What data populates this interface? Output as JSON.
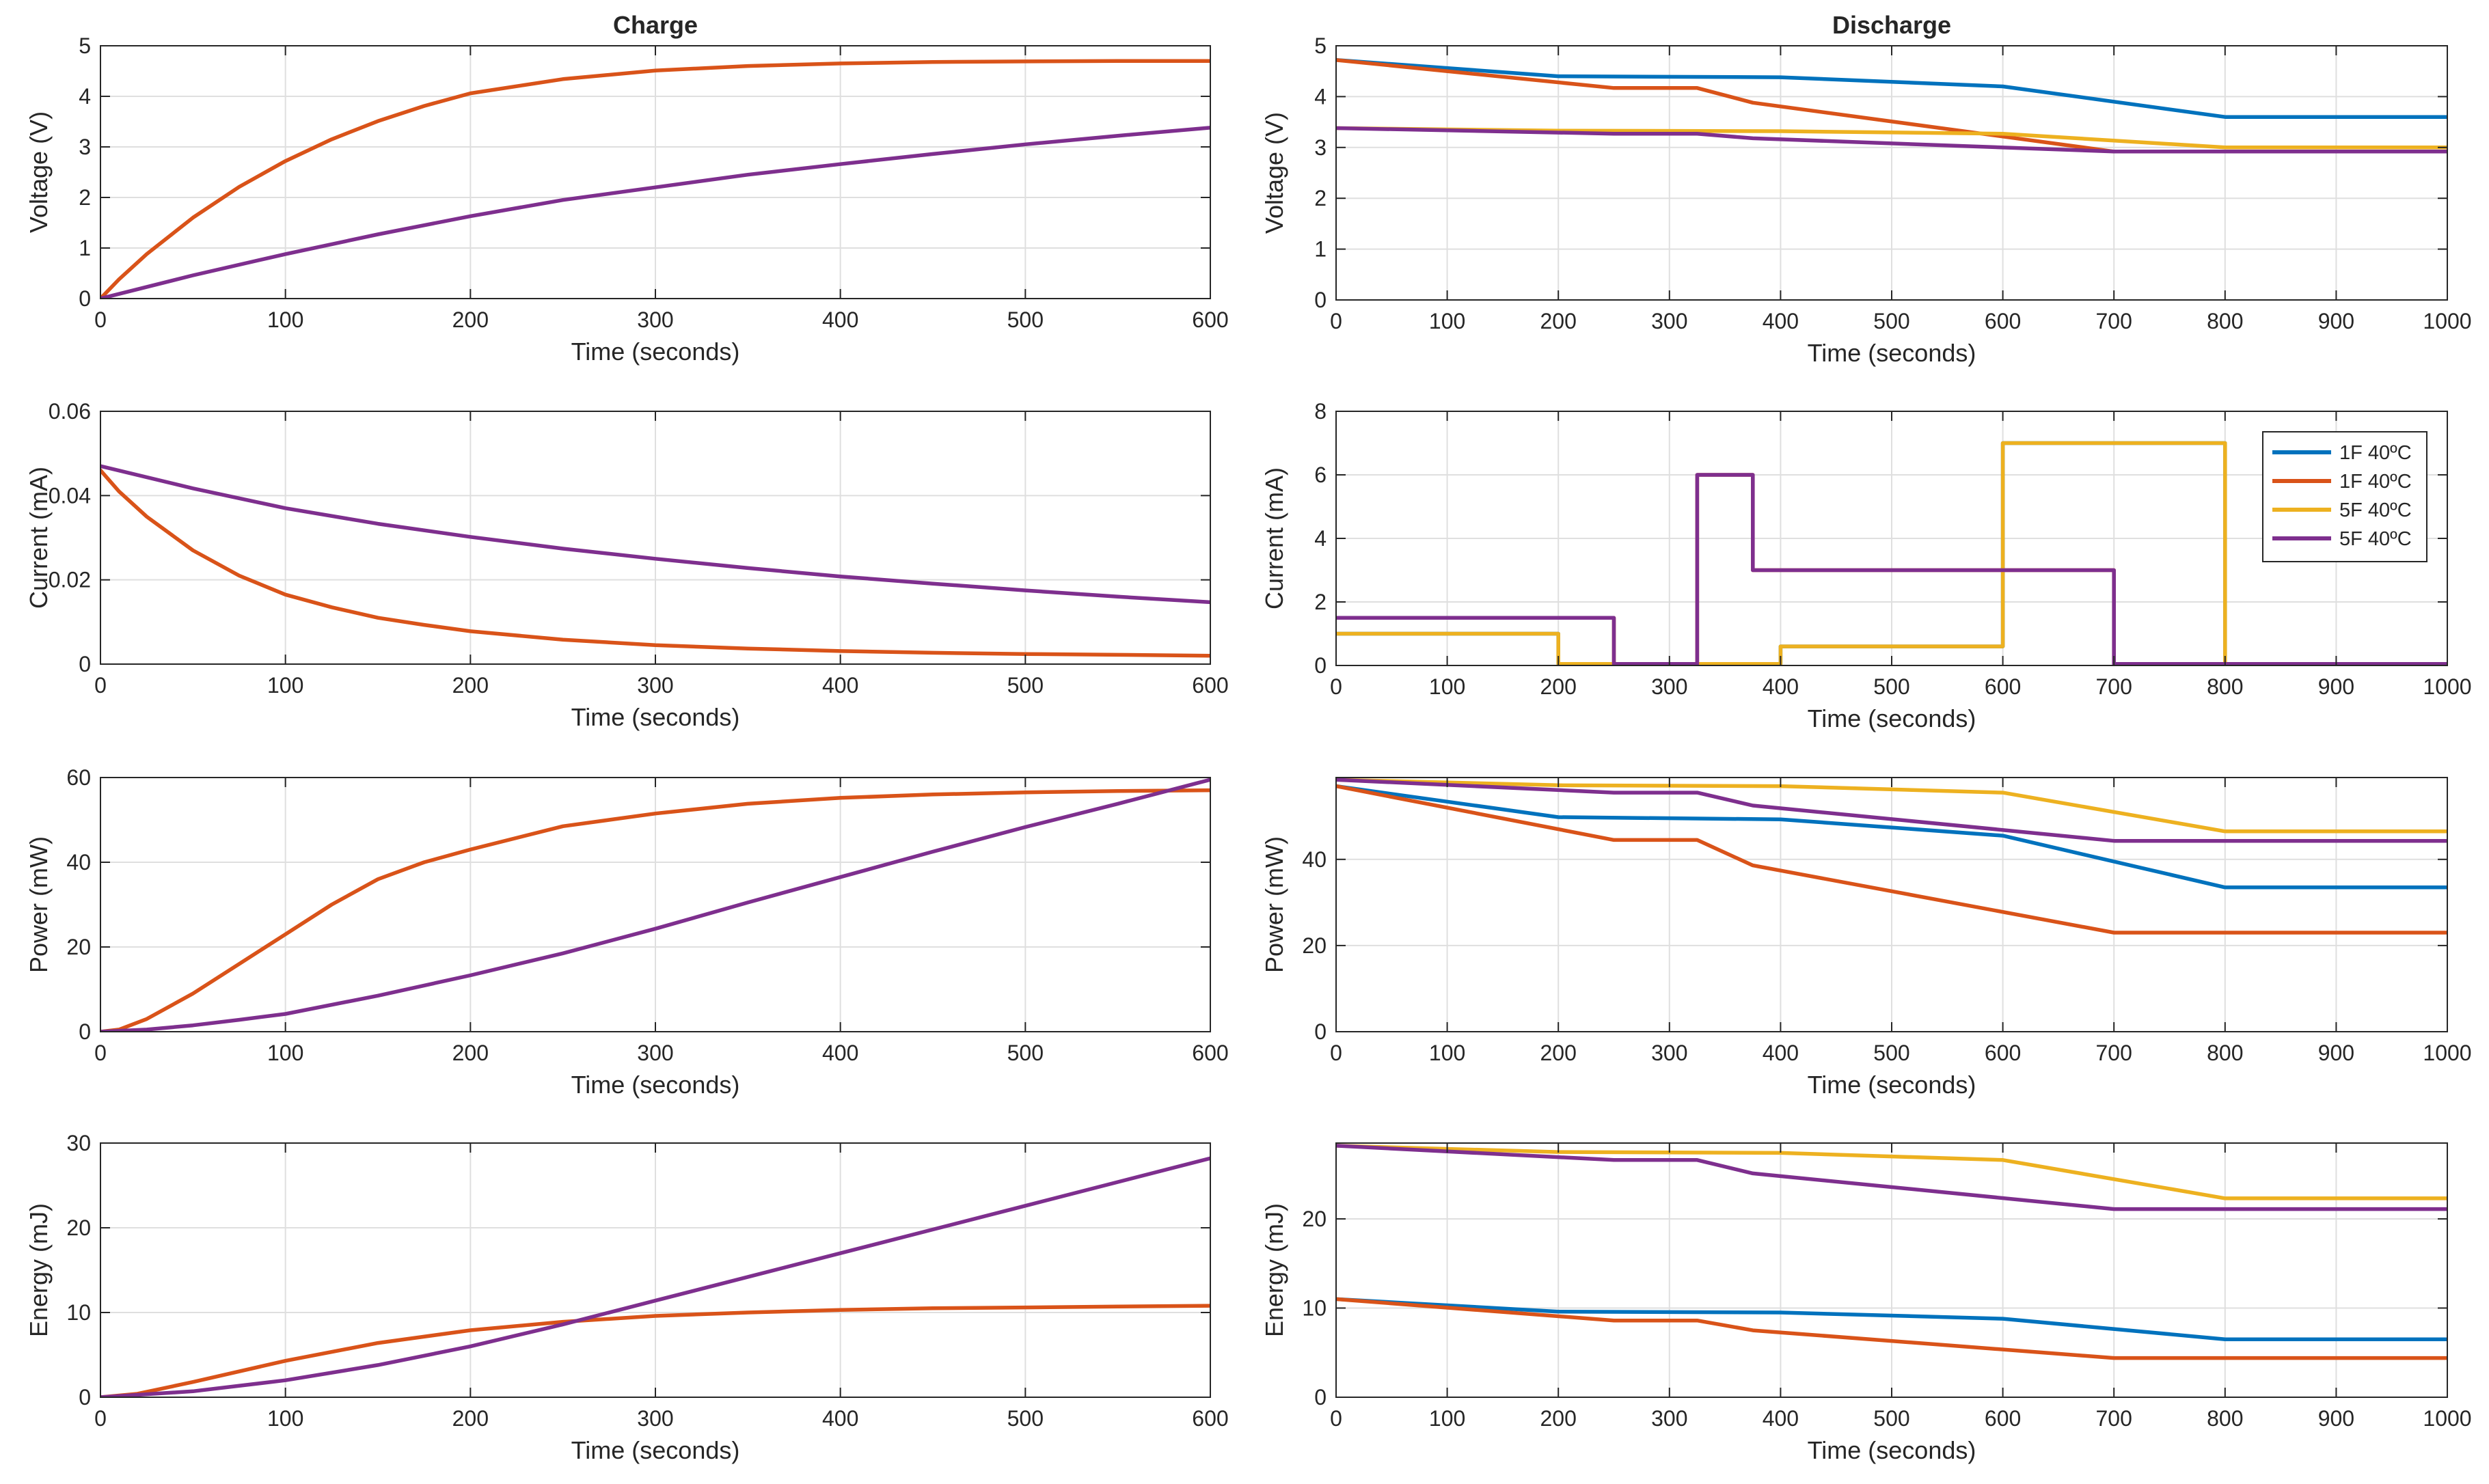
{
  "colors": {
    "blue": "#0072BD",
    "orange": "#D95319",
    "yellow": "#EDB120",
    "purple": "#7E2F8E",
    "grid": "#dfdfdf",
    "axis": "#262626"
  },
  "chart_data": [
    {
      "id": "charge-voltage",
      "type": "line",
      "title": "Charge",
      "xlabel": "Time (seconds)",
      "ylabel": "Voltage (V)",
      "xlim": [
        0,
        600
      ],
      "ylim": [
        0,
        5
      ],
      "xticks": [
        0,
        100,
        200,
        300,
        400,
        500,
        600
      ],
      "yticks": [
        0,
        1,
        2,
        3,
        4,
        5
      ],
      "ytick_labels": [
        "0",
        "1",
        "2",
        "3",
        "4",
        "5"
      ],
      "series": [
        {
          "name": "orange",
          "color": "#D95319",
          "x": [
            0,
            10,
            25,
            50,
            75,
            100,
            125,
            150,
            175,
            200,
            250,
            300,
            350,
            400,
            450,
            500,
            550,
            600
          ],
          "y": [
            0,
            0.38,
            0.88,
            1.6,
            2.21,
            2.72,
            3.15,
            3.51,
            3.81,
            4.06,
            4.34,
            4.51,
            4.6,
            4.65,
            4.68,
            4.69,
            4.7,
            4.7
          ]
        },
        {
          "name": "purple",
          "color": "#7E2F8E",
          "x": [
            0,
            50,
            100,
            150,
            200,
            250,
            300,
            350,
            400,
            450,
            500,
            550,
            600
          ],
          "y": [
            0,
            0.46,
            0.88,
            1.27,
            1.63,
            1.95,
            2.2,
            2.45,
            2.66,
            2.86,
            3.05,
            3.22,
            3.38
          ]
        }
      ]
    },
    {
      "id": "charge-current",
      "type": "line",
      "title": "",
      "xlabel": "Time (seconds)",
      "ylabel": "Current (mA)",
      "xlim": [
        0,
        600
      ],
      "ylim": [
        0,
        0.06
      ],
      "xticks": [
        0,
        100,
        200,
        300,
        400,
        500,
        600
      ],
      "yticks": [
        0,
        0.02,
        0.04,
        0.06
      ],
      "ytick_labels": [
        "0",
        "0.02",
        "0.04",
        "0.06"
      ],
      "series": [
        {
          "name": "orange",
          "color": "#D95319",
          "x": [
            0,
            10,
            25,
            50,
            75,
            100,
            125,
            150,
            175,
            200,
            250,
            300,
            350,
            400,
            450,
            500,
            550,
            600
          ],
          "y": [
            0.046,
            0.041,
            0.035,
            0.027,
            0.021,
            0.0165,
            0.0135,
            0.011,
            0.0093,
            0.0078,
            0.0058,
            0.0045,
            0.0037,
            0.0031,
            0.0027,
            0.0024,
            0.0022,
            0.002
          ]
        },
        {
          "name": "purple",
          "color": "#7E2F8E",
          "x": [
            0,
            50,
            100,
            150,
            200,
            250,
            300,
            350,
            400,
            450,
            500,
            550,
            600
          ],
          "y": [
            0.047,
            0.0417,
            0.037,
            0.0333,
            0.0302,
            0.0274,
            0.025,
            0.0228,
            0.0208,
            0.0191,
            0.0175,
            0.016,
            0.0147
          ]
        }
      ]
    },
    {
      "id": "charge-power",
      "type": "line",
      "title": "",
      "xlabel": "Time (seconds)",
      "ylabel": "Power (mW)",
      "xlim": [
        0,
        600
      ],
      "ylim": [
        0,
        60
      ],
      "xticks": [
        0,
        100,
        200,
        300,
        400,
        500,
        600
      ],
      "yticks": [
        0,
        20,
        40,
        60
      ],
      "ytick_labels": [
        "0",
        "20",
        "40",
        "60"
      ],
      "series": [
        {
          "name": "orange",
          "color": "#D95319",
          "x": [
            0,
            10,
            25,
            50,
            75,
            100,
            125,
            150,
            175,
            200,
            250,
            300,
            350,
            400,
            450,
            500,
            550,
            600
          ],
          "y": [
            0,
            0.5,
            3,
            9,
            16,
            23,
            30,
            36,
            40,
            43,
            48.5,
            51.5,
            53.8,
            55.2,
            56,
            56.5,
            56.8,
            57
          ]
        },
        {
          "name": "purple",
          "color": "#7E2F8E",
          "x": [
            0,
            25,
            50,
            75,
            100,
            150,
            200,
            250,
            300,
            350,
            400,
            450,
            500,
            550,
            600
          ],
          "y": [
            0,
            0.5,
            1.5,
            2.8,
            4.2,
            8.5,
            13.3,
            18.5,
            24.3,
            30.5,
            36.5,
            42.5,
            48.3,
            53.8,
            59.5
          ]
        }
      ]
    },
    {
      "id": "charge-energy",
      "type": "line",
      "title": "",
      "xlabel": "Time (seconds)",
      "ylabel": "Energy (mJ)",
      "xlim": [
        0,
        600
      ],
      "ylim": [
        0,
        30
      ],
      "xticks": [
        0,
        100,
        200,
        300,
        400,
        500,
        600
      ],
      "yticks": [
        0,
        10,
        20,
        30
      ],
      "ytick_labels": [
        "0",
        "10",
        "20",
        "30"
      ],
      "series": [
        {
          "name": "orange",
          "color": "#D95319",
          "x": [
            0,
            20,
            50,
            100,
            150,
            200,
            250,
            300,
            350,
            400,
            450,
            500,
            550,
            600
          ],
          "y": [
            0,
            0.4,
            1.8,
            4.3,
            6.4,
            7.9,
            8.9,
            9.6,
            10,
            10.3,
            10.5,
            10.6,
            10.7,
            10.8
          ]
        },
        {
          "name": "purple",
          "color": "#7E2F8E",
          "x": [
            0,
            50,
            100,
            150,
            200,
            250,
            300,
            350,
            400,
            450,
            500,
            550,
            600
          ],
          "y": [
            0,
            0.7,
            2,
            3.8,
            6,
            8.6,
            11.4,
            14.2,
            17,
            19.8,
            22.6,
            25.4,
            28.2
          ]
        }
      ]
    },
    {
      "id": "discharge-voltage",
      "type": "line",
      "title": "Discharge",
      "xlabel": "Time (seconds)",
      "ylabel": "Voltage (V)",
      "xlim": [
        0,
        1000
      ],
      "ylim": [
        0,
        5
      ],
      "xticks": [
        0,
        100,
        200,
        300,
        400,
        500,
        600,
        700,
        800,
        900,
        1000
      ],
      "yticks": [
        0,
        1,
        2,
        3,
        4,
        5
      ],
      "ytick_labels": [
        "0",
        "1",
        "2",
        "3",
        "4",
        "5"
      ],
      "series": [
        {
          "name": "1F 40ºC",
          "color": "#0072BD",
          "x": [
            0,
            200,
            400,
            600,
            800,
            1000
          ],
          "y": [
            4.72,
            4.4,
            4.38,
            4.2,
            3.6,
            3.6
          ]
        },
        {
          "name": "1F 40ºC",
          "color": "#D95319",
          "x": [
            0,
            250,
            325,
            375,
            700,
            800,
            1000
          ],
          "y": [
            4.72,
            4.17,
            4.17,
            3.88,
            2.92,
            2.92,
            2.92
          ]
        },
        {
          "name": "5F 40ºC",
          "color": "#EDB120",
          "x": [
            0,
            200,
            400,
            600,
            800,
            1000
          ],
          "y": [
            3.38,
            3.33,
            3.32,
            3.27,
            3.0,
            3.0
          ]
        },
        {
          "name": "5F 40ºC",
          "color": "#7E2F8E",
          "x": [
            0,
            250,
            325,
            375,
            700,
            800,
            1000
          ],
          "y": [
            3.38,
            3.27,
            3.27,
            3.18,
            2.92,
            2.92,
            2.92
          ]
        }
      ]
    },
    {
      "id": "discharge-current",
      "type": "line",
      "title": "",
      "xlabel": "Time (seconds)",
      "ylabel": "Current (mA)",
      "xlim": [
        0,
        1000
      ],
      "ylim": [
        0,
        8
      ],
      "xticks": [
        0,
        100,
        200,
        300,
        400,
        500,
        600,
        700,
        800,
        900,
        1000
      ],
      "yticks": [
        0,
        2,
        4,
        6,
        8
      ],
      "ytick_labels": [
        "0",
        "2",
        "4",
        "6",
        "8"
      ],
      "legend": {
        "location": "top-right",
        "entries": [
          "1F 40ºC",
          "1F 40ºC",
          "5F 40ºC",
          "5F 40ºC"
        ]
      },
      "series": [
        {
          "name": "1F 40ºC",
          "color": "#0072BD",
          "x": [
            0,
            200,
            200,
            400,
            400,
            600,
            600,
            800,
            800,
            1000
          ],
          "y": [
            1,
            1,
            0.05,
            0.05,
            0.6,
            0.6,
            7,
            7,
            0.05,
            0.05
          ]
        },
        {
          "name": "1F 40ºC",
          "color": "#D95319",
          "x": [
            0,
            250,
            250,
            325,
            325,
            375,
            375,
            700,
            700,
            1000
          ],
          "y": [
            1.5,
            1.5,
            0.05,
            0.05,
            6,
            6,
            3,
            3,
            0.05,
            0.05
          ]
        },
        {
          "name": "5F 40ºC",
          "color": "#EDB120",
          "x": [
            0,
            200,
            200,
            400,
            400,
            600,
            600,
            800,
            800,
            1000
          ],
          "y": [
            1,
            1,
            0.05,
            0.05,
            0.6,
            0.6,
            7,
            7,
            0.05,
            0.05
          ]
        },
        {
          "name": "5F 40ºC",
          "color": "#7E2F8E",
          "x": [
            0,
            250,
            250,
            325,
            325,
            375,
            375,
            700,
            700,
            1000
          ],
          "y": [
            1.5,
            1.5,
            0.05,
            0.05,
            6,
            6,
            3,
            3,
            0.05,
            0.05
          ]
        }
      ]
    },
    {
      "id": "discharge-power",
      "type": "line",
      "title": "",
      "xlabel": "Time (seconds)",
      "ylabel": "Power (mW)",
      "xlim": [
        0,
        1000
      ],
      "ylim": [
        0,
        59
      ],
      "xticks": [
        0,
        100,
        200,
        300,
        400,
        500,
        600,
        700,
        800,
        900,
        1000
      ],
      "yticks": [
        0,
        20,
        40
      ],
      "ytick_labels": [
        "0",
        "20",
        "40"
      ],
      "series": [
        {
          "name": "1F 40ºC",
          "color": "#0072BD",
          "x": [
            0,
            200,
            400,
            600,
            800,
            1000
          ],
          "y": [
            57,
            49.8,
            49.3,
            45.5,
            33.5,
            33.5
          ]
        },
        {
          "name": "1F 40ºC",
          "color": "#D95319",
          "x": [
            0,
            250,
            325,
            375,
            700,
            800,
            1000
          ],
          "y": [
            57,
            44.5,
            44.5,
            38.6,
            23,
            23,
            23
          ]
        },
        {
          "name": "5F 40ºC",
          "color": "#EDB120",
          "x": [
            0,
            200,
            400,
            600,
            800,
            1000
          ],
          "y": [
            58.5,
            57.2,
            57,
            55.5,
            46.5,
            46.5
          ]
        },
        {
          "name": "5F 40ºC",
          "color": "#7E2F8E",
          "x": [
            0,
            250,
            325,
            375,
            700,
            800,
            1000
          ],
          "y": [
            58.5,
            55.5,
            55.5,
            52.5,
            44.3,
            44.3,
            44.3
          ]
        }
      ]
    },
    {
      "id": "discharge-energy",
      "type": "line",
      "title": "",
      "xlabel": "Time (seconds)",
      "ylabel": "Energy (mJ)",
      "xlim": [
        0,
        1000
      ],
      "ylim": [
        0,
        28.5
      ],
      "xticks": [
        0,
        100,
        200,
        300,
        400,
        500,
        600,
        700,
        800,
        900,
        1000
      ],
      "yticks": [
        0,
        10,
        20
      ],
      "ytick_labels": [
        "0",
        "10",
        "20"
      ],
      "series": [
        {
          "name": "1F 40ºC",
          "color": "#0072BD",
          "x": [
            0,
            200,
            400,
            600,
            800,
            1000
          ],
          "y": [
            11,
            9.6,
            9.5,
            8.8,
            6.5,
            6.5
          ]
        },
        {
          "name": "1F 40ºC",
          "color": "#D95319",
          "x": [
            0,
            250,
            325,
            375,
            700,
            800,
            1000
          ],
          "y": [
            11,
            8.6,
            8.6,
            7.5,
            4.4,
            4.4,
            4.4
          ]
        },
        {
          "name": "5F 40ºC",
          "color": "#EDB120",
          "x": [
            0,
            200,
            400,
            600,
            800,
            1000
          ],
          "y": [
            28.2,
            27.5,
            27.4,
            26.6,
            22.3,
            22.3
          ]
        },
        {
          "name": "5F 40ºC",
          "color": "#7E2F8E",
          "x": [
            0,
            250,
            325,
            375,
            700,
            800,
            1000
          ],
          "y": [
            28.2,
            26.6,
            26.6,
            25.1,
            21.1,
            21.1,
            21.1
          ]
        }
      ]
    }
  ]
}
